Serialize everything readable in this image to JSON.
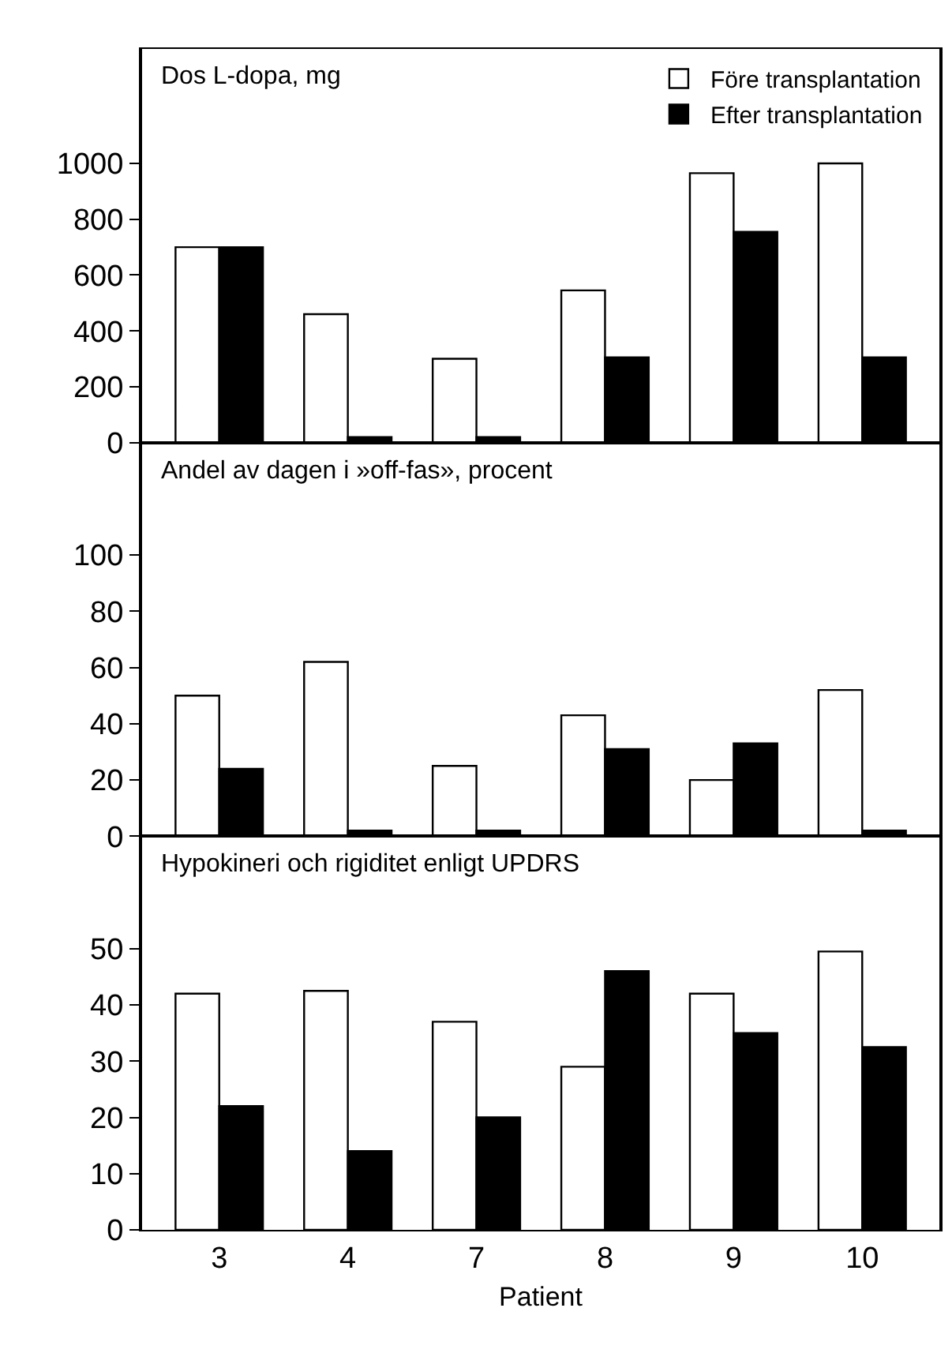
{
  "chart_data": [
    {
      "type": "bar",
      "title": "Dos L-dopa, mg",
      "categories": [
        "3",
        "4",
        "7",
        "8",
        "9",
        "10"
      ],
      "ylim": [
        0,
        1410
      ],
      "yticks": [
        0,
        200,
        400,
        600,
        800,
        1000
      ],
      "tick_labels": "y",
      "legend": "top right",
      "grid": false,
      "series": [
        {
          "name": "Före transplantation",
          "color": "#ffffff",
          "values": [
            700,
            460,
            300,
            545,
            965,
            1000
          ]
        },
        {
          "name": "Efter transplantation",
          "color": "#000000",
          "values": [
            700,
            20,
            20,
            305,
            755,
            305
          ]
        }
      ]
    },
    {
      "type": "bar",
      "title": "Andel av dagen i »off-fas», procent",
      "categories": [
        "3",
        "4",
        "7",
        "8",
        "9",
        "10"
      ],
      "ylim": [
        0,
        140
      ],
      "yticks": [
        0,
        20,
        40,
        60,
        80,
        100
      ],
      "tick_labels": "y",
      "grid": false,
      "series": [
        {
          "color": "#ffffff",
          "values": [
            50,
            62,
            25,
            43,
            20,
            52
          ]
        },
        {
          "color": "#000000",
          "values": [
            24,
            2,
            2,
            31,
            33,
            2
          ]
        }
      ]
    },
    {
      "type": "bar",
      "title": "Hypokineri och rigiditet enligt UPDRS",
      "xlabel": "Patient",
      "categories": [
        "3",
        "4",
        "7",
        "8",
        "9",
        "10"
      ],
      "ylim": [
        0,
        70
      ],
      "yticks": [
        0,
        10,
        20,
        30,
        40,
        50
      ],
      "grid": false,
      "series": [
        {
          "color": "#ffffff",
          "values": [
            42,
            42.5,
            37,
            29,
            42,
            49.5
          ]
        },
        {
          "color": "#000000",
          "values": [
            22,
            14,
            20,
            46,
            35,
            32.5
          ]
        }
      ]
    }
  ]
}
